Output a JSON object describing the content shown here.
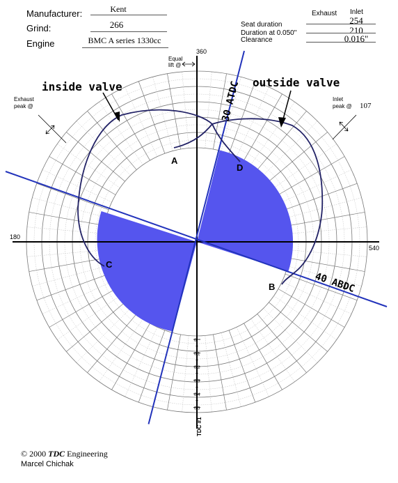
{
  "header": {
    "manufacturer_label": "Manufacturer:",
    "manufacturer_value": "Kent",
    "grind_label": "Grind:",
    "grind_value": "266",
    "engine_label": "Engine",
    "engine_value": "BMC A series 1330cc"
  },
  "specs": {
    "col_exhaust": "Exhaust",
    "col_inlet": "Inlet",
    "seat_duration_label": "Seat duration",
    "duration_050_label": "Duration at 0.050\"",
    "clearance_label": "Clearance",
    "seat_duration_inlet": "254",
    "duration_050_inlet": "210",
    "clearance_inlet": "0.016\""
  },
  "diagram": {
    "label_360": "360",
    "label_180": "180",
    "label_540": "540",
    "equal_lift": [
      "Equal",
      "lift @"
    ],
    "exhaust_peak": [
      "Exhaust",
      "peak @"
    ],
    "inlet_peak": [
      "Inlet",
      "peak @"
    ],
    "inlet_peak_value": "107",
    "inside_valve": "inside valve",
    "outside_valve": "outside valve",
    "atdc_label": "30 ATDC",
    "abdc_label": "40 ABDC",
    "point_a": "A",
    "point_b": "B",
    "point_c": "C",
    "point_d": "D",
    "scale": [
      "0",
      "0.1",
      "0.2",
      "0.3",
      "0.4",
      "0.5"
    ],
    "tdc_label": "TDC #1",
    "fill_color": "#5555ee",
    "line_color": "#2233bb"
  },
  "footer": {
    "copyright_prefix": "© 2000 ",
    "copyright_brand": "TDC",
    "copyright_suffix": " Engineering",
    "author": "Marcel Chichak"
  }
}
